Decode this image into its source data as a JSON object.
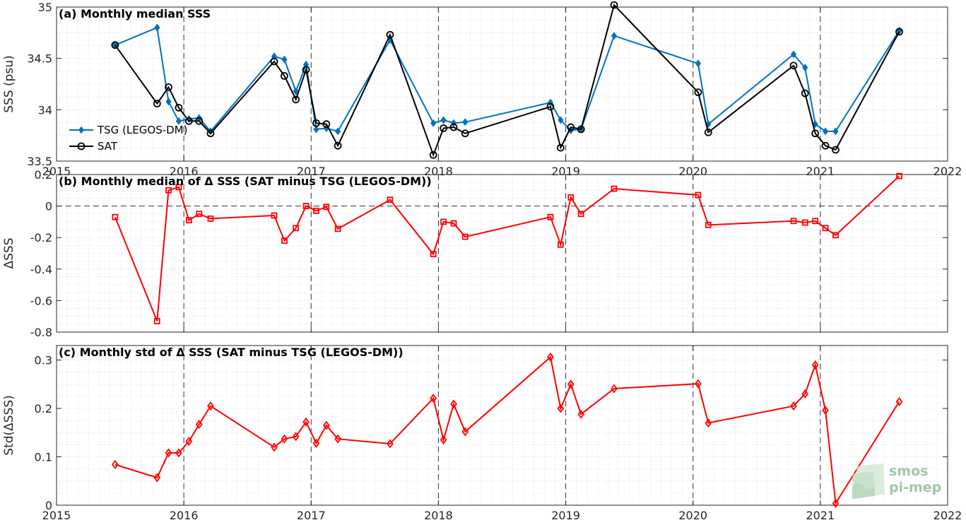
{
  "chart_data": [
    {
      "type": "line",
      "title": "(a) Monthly median SSS",
      "ylabel": "SSS (psu)",
      "xlim": [
        2015,
        2022
      ],
      "ylim": [
        33.5,
        35
      ],
      "xticks": [
        2015,
        2016,
        2017,
        2018,
        2019,
        2020,
        2021,
        2022
      ],
      "xtick_labels": [
        "2015",
        "2016",
        "2017",
        "2018",
        "2019",
        "2020",
        "2021",
        "2022"
      ],
      "yticks": [
        33.5,
        34,
        34.5,
        35
      ],
      "ytick_labels": [
        "33.5",
        "34",
        "34.5",
        "35"
      ],
      "grid": true,
      "legend_position": "left",
      "series": [
        {
          "name": "TSG (LEGOS-DM)",
          "color": "#0072BD",
          "marker": "diamond",
          "x": [
            2015.46,
            2015.79,
            2015.88,
            2015.96,
            2016.04,
            2016.12,
            2016.21,
            2016.71,
            2016.79,
            2016.88,
            2016.96,
            2017.04,
            2017.12,
            2017.21,
            2017.62,
            2017.96,
            2018.04,
            2018.12,
            2018.21,
            2018.88,
            2018.96,
            2019.04,
            2019.12,
            2019.38,
            2020.04,
            2020.12,
            2020.79,
            2020.88,
            2020.96,
            2021.04,
            2021.12,
            2021.62
          ],
          "y": [
            34.63,
            34.8,
            34.08,
            33.89,
            33.91,
            33.92,
            33.79,
            34.52,
            34.49,
            34.18,
            34.44,
            33.81,
            33.82,
            33.79,
            34.68,
            33.87,
            33.9,
            33.87,
            33.88,
            34.07,
            33.9,
            33.8,
            33.81,
            34.72,
            34.45,
            33.86,
            34.54,
            34.41,
            33.86,
            33.79,
            33.79,
            34.77
          ]
        },
        {
          "name": "SAT",
          "color": "#000000",
          "marker": "circle",
          "x": [
            2015.46,
            2015.79,
            2015.88,
            2015.96,
            2016.04,
            2016.12,
            2016.21,
            2016.71,
            2016.79,
            2016.88,
            2016.96,
            2017.04,
            2017.12,
            2017.21,
            2017.62,
            2017.96,
            2018.04,
            2018.12,
            2018.21,
            2018.88,
            2018.96,
            2019.04,
            2019.12,
            2019.38,
            2020.04,
            2020.12,
            2020.79,
            2020.88,
            2020.96,
            2021.04,
            2021.12,
            2021.62
          ],
          "y": [
            34.63,
            34.06,
            34.22,
            34.02,
            33.89,
            33.89,
            33.77,
            34.47,
            34.33,
            34.1,
            34.39,
            33.87,
            33.86,
            33.65,
            34.73,
            33.56,
            33.82,
            33.83,
            33.77,
            34.03,
            33.63,
            33.83,
            33.81,
            35.02,
            34.17,
            33.78,
            34.43,
            34.16,
            33.77,
            33.65,
            33.61,
            34.76
          ]
        }
      ]
    },
    {
      "type": "line",
      "title": "(b) Monthly median of Δ SSS (SAT minus TSG (LEGOS-DM))",
      "ylabel": "ΔSSS",
      "xlim": [
        2015,
        2022
      ],
      "ylim": [
        -0.8,
        0.2
      ],
      "xticks": [
        2015,
        2016,
        2017,
        2018,
        2019,
        2020,
        2021,
        2022
      ],
      "yticks": [
        -0.8,
        -0.6,
        -0.4,
        -0.2,
        0,
        0.2
      ],
      "ytick_labels": [
        "-0.8",
        "-0.6",
        "-0.4",
        "-0.2",
        "0",
        "0.2"
      ],
      "zero_line": true,
      "grid": true,
      "series": [
        {
          "color": "#FF0000",
          "marker": "square",
          "x": [
            2015.46,
            2015.79,
            2015.88,
            2015.96,
            2016.04,
            2016.12,
            2016.21,
            2016.71,
            2016.79,
            2016.88,
            2016.96,
            2017.04,
            2017.12,
            2017.21,
            2017.62,
            2017.96,
            2018.04,
            2018.12,
            2018.21,
            2018.88,
            2018.96,
            2019.04,
            2019.12,
            2019.38,
            2020.04,
            2020.12,
            2020.79,
            2020.88,
            2020.96,
            2021.04,
            2021.12,
            2021.62
          ],
          "y": [
            -0.07,
            -0.73,
            0.1,
            0.12,
            -0.09,
            -0.05,
            -0.08,
            -0.06,
            -0.22,
            -0.14,
            0.0,
            -0.03,
            -0.005,
            -0.145,
            0.04,
            -0.305,
            -0.1,
            -0.11,
            -0.195,
            -0.07,
            -0.245,
            0.055,
            -0.05,
            0.11,
            0.07,
            -0.12,
            -0.095,
            -0.105,
            -0.095,
            -0.14,
            -0.185,
            0.19
          ]
        }
      ]
    },
    {
      "type": "line",
      "title": "(c) Monthly std of Δ SSS (SAT minus TSG (LEGOS-DM))",
      "ylabel": "Std(ΔSSS)",
      "xlim": [
        2015,
        2022
      ],
      "ylim": [
        0,
        0.33
      ],
      "xticks": [
        2015,
        2016,
        2017,
        2018,
        2019,
        2020,
        2021,
        2022
      ],
      "xtick_labels": [
        "2015",
        "2016",
        "2017",
        "2018",
        "2019",
        "2020",
        "2021",
        "2022"
      ],
      "yticks": [
        0,
        0.1,
        0.2,
        0.3
      ],
      "ytick_labels": [
        "0",
        "0.1",
        "0.2",
        "0.3"
      ],
      "grid": true,
      "series": [
        {
          "color": "#FF0000",
          "marker": "diamond",
          "x": [
            2015.46,
            2015.79,
            2015.88,
            2015.96,
            2016.04,
            2016.12,
            2016.21,
            2016.71,
            2016.79,
            2016.88,
            2016.96,
            2017.04,
            2017.12,
            2017.21,
            2017.62,
            2017.96,
            2018.04,
            2018.12,
            2018.21,
            2018.88,
            2018.96,
            2019.04,
            2019.12,
            2019.38,
            2020.04,
            2020.12,
            2020.79,
            2020.88,
            2020.96,
            2021.04,
            2021.12,
            2021.62
          ],
          "y": [
            0.084,
            0.057,
            0.108,
            0.108,
            0.132,
            0.167,
            0.205,
            0.12,
            0.137,
            0.142,
            0.172,
            0.128,
            0.165,
            0.137,
            0.127,
            0.221,
            0.135,
            0.209,
            0.152,
            0.306,
            0.2,
            0.25,
            0.188,
            0.241,
            0.251,
            0.17,
            0.205,
            0.23,
            0.29,
            0.196,
            0.004,
            0.214
          ]
        }
      ]
    }
  ],
  "watermark": {
    "line1": "smos",
    "line2": "pi-mep"
  }
}
